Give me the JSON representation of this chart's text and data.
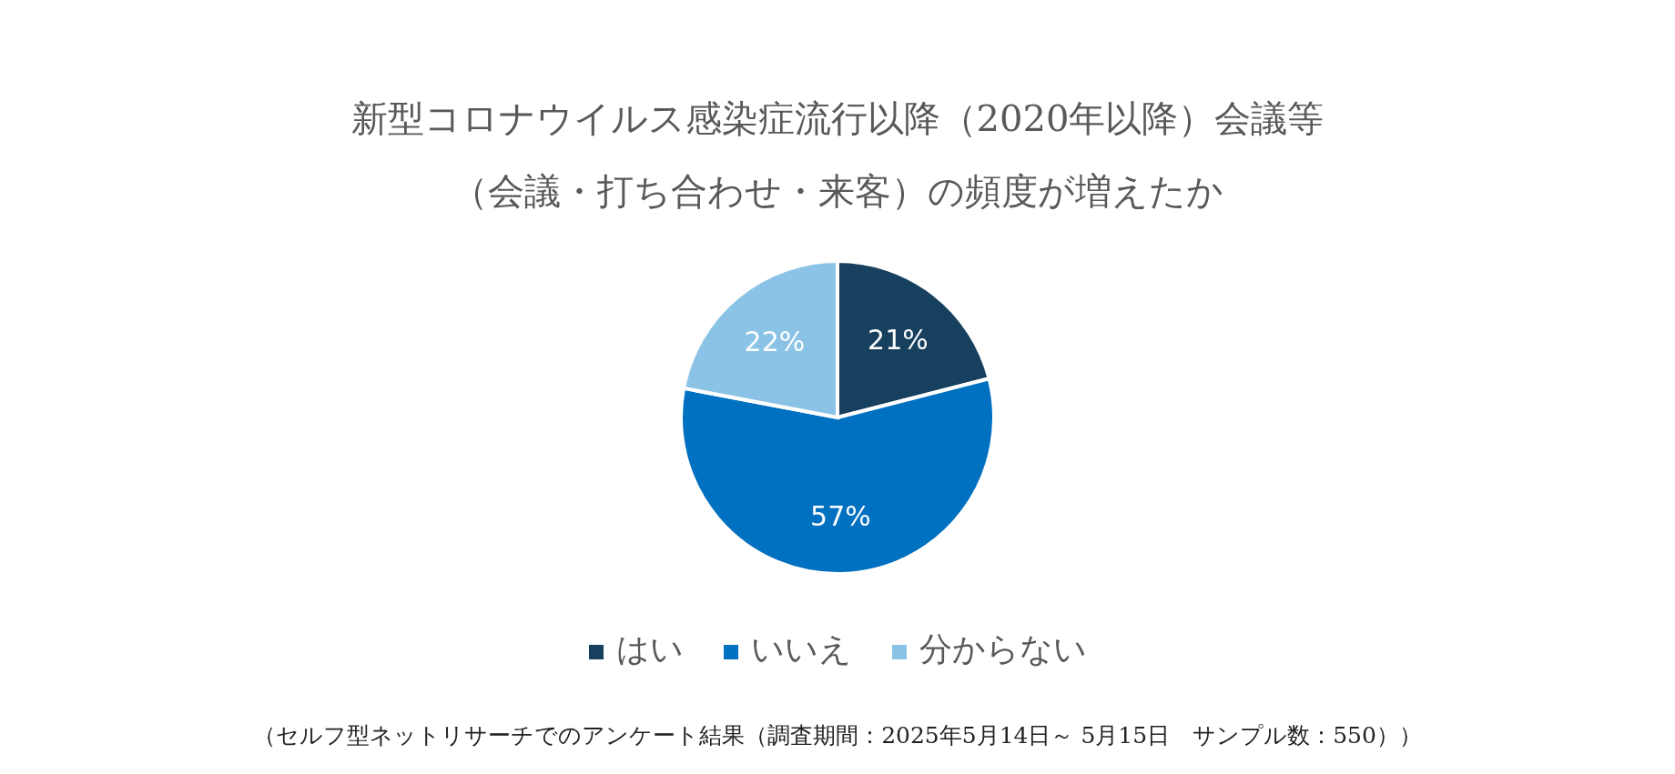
{
  "chart_data": {
    "type": "pie",
    "title": "新型コロナウイルス感染症流行以降（2020年以降）会議等（会議・打ち合わせ・来客）の頻度が増えたか",
    "categories": [
      "はい",
      "いいえ",
      "分からない"
    ],
    "values": [
      21,
      57,
      22
    ],
    "value_labels": [
      "21%",
      "57%",
      "22%"
    ],
    "colors": [
      "#17405e",
      "#0070c0",
      "#8bc3e6"
    ],
    "legend": "bottom",
    "annotations": [
      "（セルフ型ネットリサーチでのアンケート結果（調査期間：2025年5月14日～ 5月15日　サンプル数：550））"
    ]
  }
}
